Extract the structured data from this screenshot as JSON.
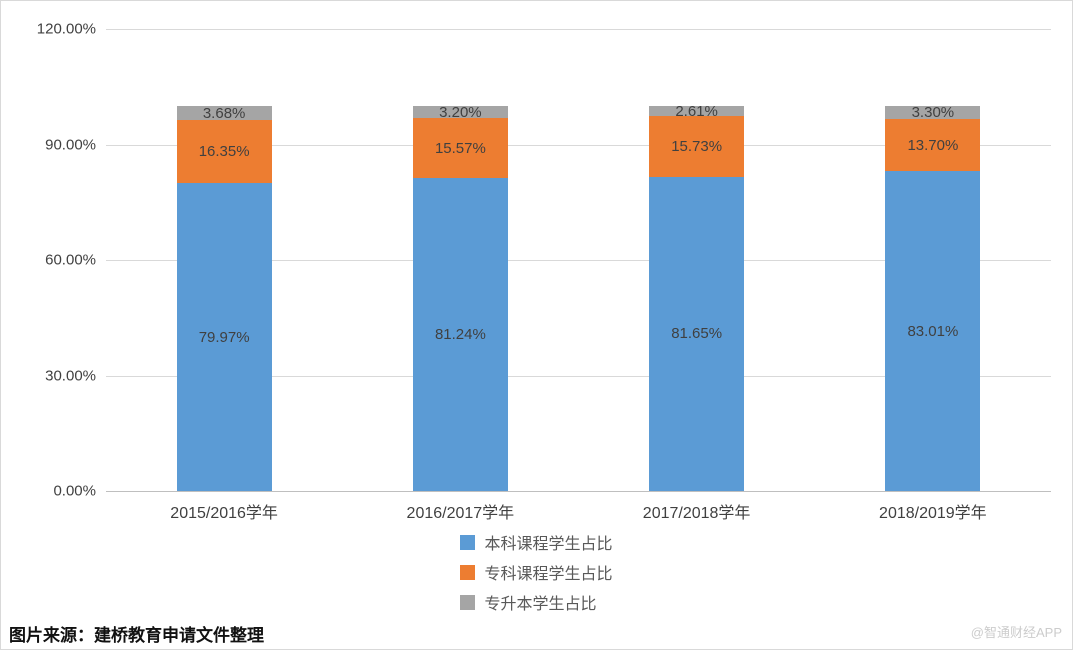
{
  "chart_data": {
    "type": "bar",
    "stacked": true,
    "categories": [
      "2015/2016学年",
      "2016/2017学年",
      "2017/2018学年",
      "2018/2019学年"
    ],
    "series": [
      {
        "name": "本科课程学生占比",
        "color": "#5b9bd5",
        "values": [
          79.97,
          81.24,
          81.65,
          83.01
        ]
      },
      {
        "name": "专科课程学生占比",
        "color": "#ed7d31",
        "values": [
          16.35,
          15.57,
          15.73,
          13.7
        ]
      },
      {
        "name": "专升本学生占比",
        "color": "#a5a5a5",
        "values": [
          3.68,
          3.2,
          2.61,
          3.3
        ]
      }
    ],
    "y_axis": {
      "min": 0,
      "max": 120,
      "tick_values": [
        0,
        30,
        60,
        90,
        120
      ],
      "ticks": [
        "0.00%",
        "30.00%",
        "60.00%",
        "90.00%",
        "120.00%"
      ]
    },
    "grid": true,
    "legend_position": "bottom",
    "title": "",
    "xlabel": "",
    "ylabel": ""
  },
  "caption": "图片来源：建桥教育申请文件整理",
  "watermark": "@智通财经APP",
  "colors": {
    "grid": "#d9d9d9",
    "axis": "#bfbfbf",
    "data_label": "#404040",
    "tick_label": "#404040",
    "legend_label": "#595959"
  }
}
